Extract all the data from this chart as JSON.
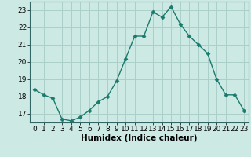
{
  "x": [
    0,
    1,
    2,
    3,
    4,
    5,
    6,
    7,
    8,
    9,
    10,
    11,
    12,
    13,
    14,
    15,
    16,
    17,
    18,
    19,
    20,
    21,
    22,
    23
  ],
  "y": [
    18.4,
    18.1,
    17.9,
    16.7,
    16.6,
    16.8,
    17.2,
    17.7,
    18.0,
    18.9,
    20.2,
    21.5,
    21.5,
    22.9,
    22.6,
    23.2,
    22.2,
    21.5,
    21.0,
    20.5,
    19.0,
    18.1,
    18.1,
    17.2
  ],
  "line_color": "#1a7a6e",
  "marker": "D",
  "marker_size": 2.5,
  "bg_color": "#cce9e4",
  "grid_color": "#aacfc9",
  "xlabel": "Humidex (Indice chaleur)",
  "xlabel_fontsize": 7.5,
  "tick_fontsize": 6.5,
  "xlim": [
    -0.5,
    23.5
  ],
  "ylim": [
    16.5,
    23.5
  ],
  "yticks": [
    17,
    18,
    19,
    20,
    21,
    22,
    23
  ],
  "xticks": [
    0,
    1,
    2,
    3,
    4,
    5,
    6,
    7,
    8,
    9,
    10,
    11,
    12,
    13,
    14,
    15,
    16,
    17,
    18,
    19,
    20,
    21,
    22,
    23
  ]
}
